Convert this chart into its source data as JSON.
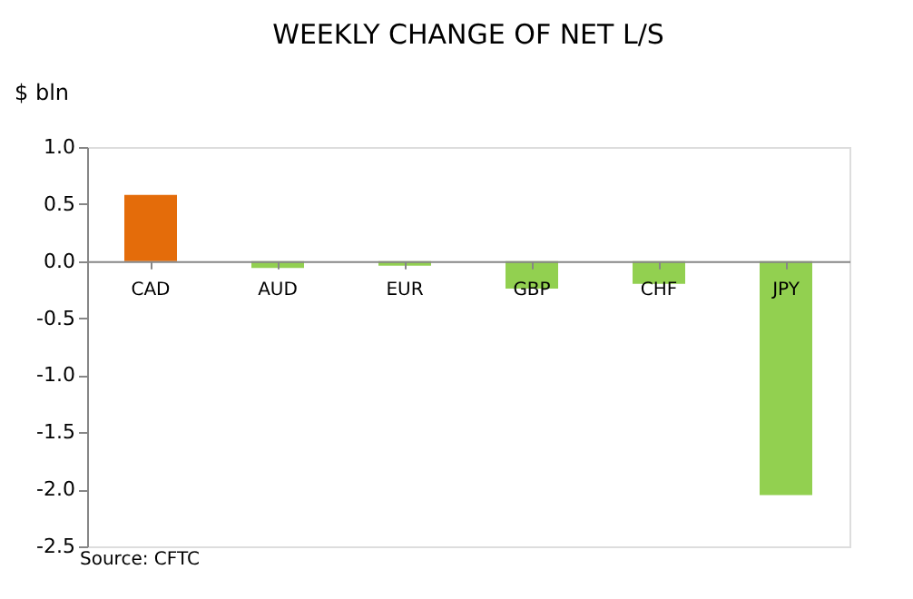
{
  "chart_data": {
    "type": "bar",
    "title": "WEEKLY CHANGE OF NET L/S",
    "ylabel": "$ bln",
    "categories": [
      "CAD",
      "AUD",
      "EUR",
      "GBP",
      "CHF",
      "JPY"
    ],
    "values": [
      0.58,
      -0.06,
      -0.04,
      -0.24,
      -0.2,
      -2.05
    ],
    "colors": [
      "#e46c0a",
      "#92d050",
      "#92d050",
      "#92d050",
      "#92d050",
      "#92d050"
    ],
    "ylim": [
      -2.5,
      1.0
    ],
    "yticks": [
      {
        "value": -2.5,
        "label": "-2.5"
      },
      {
        "value": -2,
        "label": "-2.0"
      },
      {
        "value": -1.5,
        "label": "-1.5"
      },
      {
        "value": -1,
        "label": "-1.0"
      },
      {
        "value": -0.5,
        "label": "-0.5"
      },
      {
        "value": 0,
        "label": "0.0"
      },
      {
        "value": 0.5,
        "label": "0.5"
      },
      {
        "value": 1,
        "label": "1.0"
      }
    ],
    "grid": false,
    "annotations": [
      "Source: CFTC"
    ]
  }
}
